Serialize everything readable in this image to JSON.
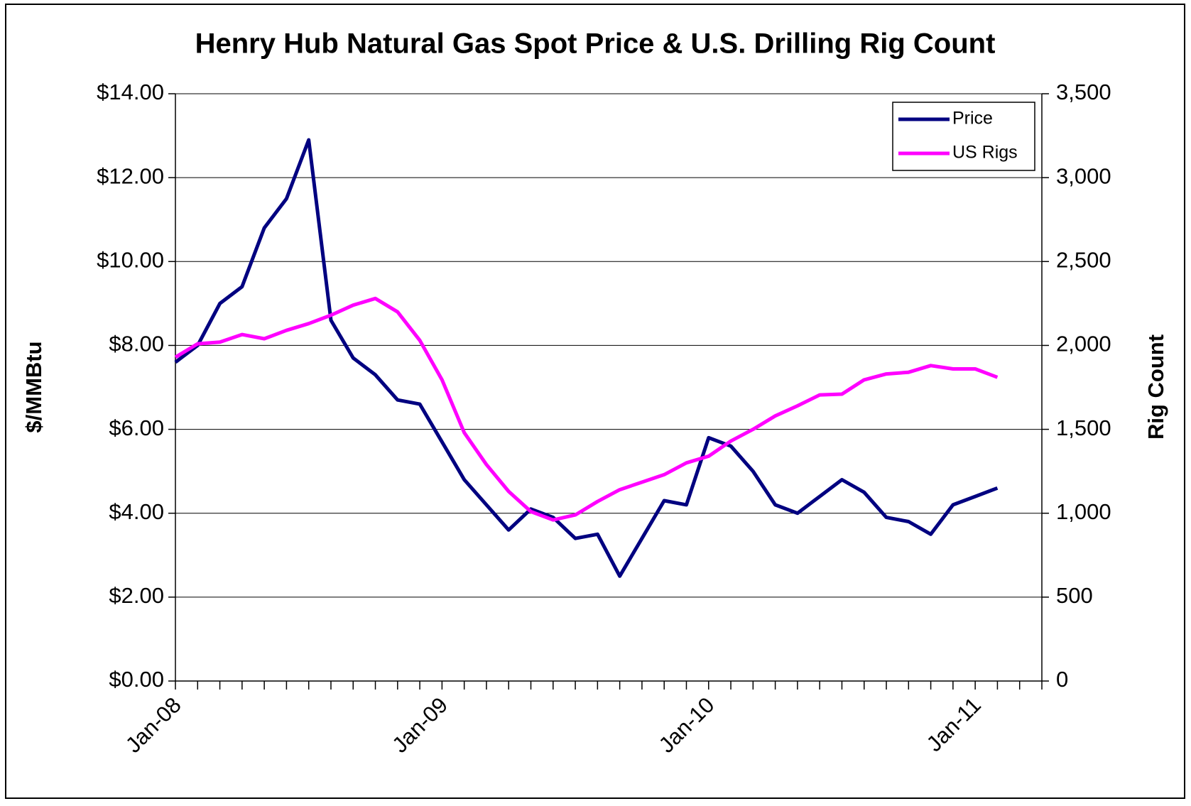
{
  "chart_data": {
    "type": "line",
    "title": "Henry Hub Natural Gas Spot Price & U.S. Drilling Rig Count",
    "y_label": "$/MMBtu",
    "y2_label": "Rig Count",
    "categories": [
      "Jan-08",
      null,
      null,
      null,
      null,
      null,
      null,
      null,
      null,
      null,
      null,
      null,
      "Jan-09",
      null,
      null,
      null,
      null,
      null,
      null,
      null,
      null,
      null,
      null,
      null,
      "Jan-10",
      null,
      null,
      null,
      null,
      null,
      null,
      null,
      null,
      null,
      null,
      null,
      "Jan-11",
      null,
      null,
      null
    ],
    "series": [
      {
        "name": "Price",
        "color": "#000080",
        "values": [
          7.6,
          8.0,
          9.0,
          9.4,
          10.8,
          11.5,
          12.9,
          8.6,
          7.7,
          7.3,
          6.7,
          6.6,
          5.7,
          4.8,
          4.2,
          3.6,
          4.1,
          3.9,
          3.4,
          3.5,
          2.5,
          3.4,
          4.3,
          4.2,
          5.8,
          5.6,
          5.0,
          4.2,
          4.0,
          4.4,
          4.8,
          4.5,
          3.9,
          3.8,
          3.5,
          4.2,
          4.4,
          4.6,
          null,
          null
        ]
      },
      {
        "name": "US Rigs",
        "color": "#ff00ff",
        "axis": "y2",
        "values": [
          1930,
          2010,
          2020,
          2065,
          2040,
          2090,
          2130,
          2180,
          2240,
          2280,
          2200,
          2030,
          1795,
          1480,
          1290,
          1130,
          1010,
          960,
          990,
          1070,
          1140,
          1185,
          1230,
          1300,
          1340,
          1430,
          1500,
          1580,
          1640,
          1705,
          1710,
          1795,
          1830,
          1840,
          1880,
          1860,
          1860,
          1810,
          null,
          null
        ]
      }
    ],
    "ylim": [
      0,
      14
    ],
    "yticks": [
      {
        "value": 0,
        "label": "$0.00"
      },
      {
        "value": 2,
        "label": "$2.00"
      },
      {
        "value": 4,
        "label": "$4.00"
      },
      {
        "value": 6,
        "label": "$6.00"
      },
      {
        "value": 8,
        "label": "$8.00"
      },
      {
        "value": 10,
        "label": "$10.00"
      },
      {
        "value": 12,
        "label": "$12.00"
      },
      {
        "value": 14,
        "label": "$14.00"
      }
    ],
    "y2lim": [
      0,
      3500
    ],
    "y2ticks": [
      0,
      500,
      {
        "value": 1000,
        "label": "1,000"
      },
      {
        "value": 1500,
        "label": "1,500"
      },
      {
        "value": 2000,
        "label": "2,000"
      },
      {
        "value": 2500,
        "label": "2,500"
      },
      {
        "value": 3000,
        "label": "3,000"
      },
      {
        "value": 3500,
        "label": "3,500"
      }
    ],
    "grid": true,
    "legend": "upper right"
  }
}
